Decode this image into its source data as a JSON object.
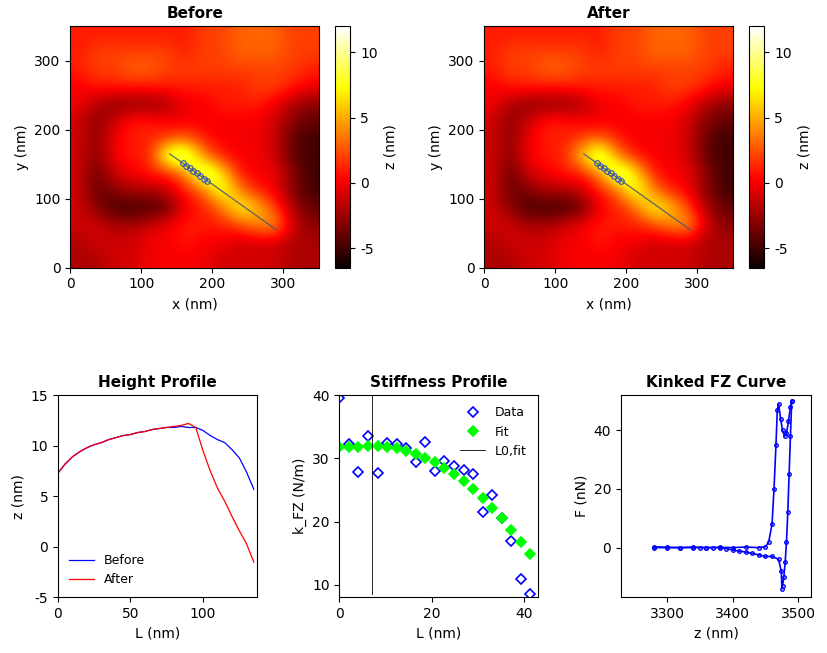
{
  "chart_data": [
    {
      "type": "heatmap",
      "title": "Before",
      "xlabel": "x (nm)",
      "ylabel": "y (nm)",
      "xlim": [
        0,
        350
      ],
      "ylim": [
        0,
        350
      ],
      "xticks": [
        0,
        100,
        200,
        300
      ],
      "yticks": [
        0,
        100,
        200,
        300
      ],
      "colorbar_label": "z (nm)",
      "colorbar_lim": [
        -6.5,
        12
      ],
      "colorbar_ticks": [
        -5,
        0,
        5,
        10
      ],
      "cells": [
        [
          -2,
          -2,
          -1,
          -1,
          0,
          0,
          0,
          0,
          -1,
          -1,
          -1,
          -1,
          -2,
          -2
        ],
        [
          -2,
          -1,
          -1,
          -1,
          0,
          0,
          1,
          0,
          0,
          -1,
          -1,
          -1,
          -2,
          -2
        ],
        [
          -1,
          -1,
          -2,
          -2,
          -1,
          0,
          1,
          1,
          1,
          2,
          4,
          5,
          -1,
          -3
        ],
        [
          -1,
          -3,
          -5,
          -5,
          -5,
          -4,
          0,
          1,
          3,
          8,
          6,
          2,
          -2,
          -4
        ],
        [
          -1,
          -4,
          -3,
          -2,
          -2,
          -1,
          1,
          3,
          9,
          4,
          1,
          0,
          -3,
          -5
        ],
        [
          -1,
          -4,
          -1,
          0,
          1,
          1,
          4,
          11,
          7,
          1,
          0,
          0,
          -3,
          -5
        ],
        [
          -1,
          -3,
          0,
          1,
          1,
          10,
          11,
          4,
          1,
          0,
          0,
          -1,
          -4,
          -5
        ],
        [
          -1,
          -3,
          0,
          1,
          1,
          2,
          3,
          1,
          0,
          0,
          0,
          -1,
          -4,
          -5
        ],
        [
          -1,
          -3,
          -1,
          1,
          1,
          0,
          0,
          0,
          0,
          0,
          0,
          -1,
          -3,
          -4
        ],
        [
          0,
          -2,
          -3,
          -3,
          -3,
          -2,
          0,
          0,
          1,
          1,
          1,
          0,
          -2,
          -3
        ],
        [
          0,
          1,
          1,
          1,
          1,
          1,
          1,
          1,
          1,
          1,
          2,
          2,
          1,
          0
        ],
        [
          1,
          2,
          2,
          3,
          3,
          2,
          2,
          2,
          2,
          2,
          2,
          2,
          2,
          1
        ],
        [
          1,
          2,
          2,
          2,
          2,
          2,
          1,
          2,
          2,
          3,
          3,
          3,
          2,
          2
        ],
        [
          1,
          1,
          1,
          1,
          1,
          1,
          1,
          2,
          2,
          3,
          3,
          3,
          2,
          2
        ]
      ],
      "profile_line": {
        "x": [
          140,
          290
        ],
        "y": [
          165,
          55
        ]
      },
      "points": {
        "x": [
          158,
          163,
          168,
          173,
          178,
          183,
          188,
          193
        ],
        "y": [
          152,
          148,
          144,
          140,
          137,
          133,
          129,
          126
        ]
      }
    },
    {
      "type": "heatmap",
      "title": "After",
      "xlabel": "x (nm)",
      "ylabel": "y (nm)",
      "xlim": [
        0,
        350
      ],
      "ylim": [
        0,
        350
      ],
      "xticks": [
        0,
        100,
        200,
        300
      ],
      "yticks": [
        0,
        100,
        200,
        300
      ],
      "colorbar_label": "z (nm)",
      "colorbar_lim": [
        -6.5,
        12
      ],
      "colorbar_ticks": [
        -5,
        0,
        5,
        10
      ],
      "cells": [
        [
          -2,
          -2,
          -1,
          -1,
          0,
          0,
          0,
          0,
          -1,
          -1,
          -1,
          -1,
          -2,
          -2
        ],
        [
          -2,
          -1,
          -1,
          -1,
          0,
          0,
          1,
          0,
          0,
          -1,
          -1,
          -1,
          -2,
          -2
        ],
        [
          -1,
          -1,
          -2,
          -2,
          -1,
          0,
          1,
          1,
          1,
          2,
          4,
          5,
          -1,
          -3
        ],
        [
          -1,
          -3,
          -5,
          -5,
          -5,
          -4,
          0,
          1,
          3,
          8,
          6,
          2,
          -2,
          -4
        ],
        [
          -1,
          -4,
          -3,
          -2,
          -2,
          -1,
          1,
          3,
          9,
          4,
          1,
          0,
          -3,
          -5
        ],
        [
          -1,
          -4,
          -1,
          0,
          1,
          1,
          4,
          11,
          7,
          1,
          0,
          0,
          -3,
          -5
        ],
        [
          -1,
          -3,
          0,
          1,
          1,
          6,
          11,
          4,
          1,
          0,
          0,
          -1,
          -4,
          -5
        ],
        [
          -1,
          -3,
          0,
          1,
          1,
          2,
          3,
          1,
          0,
          0,
          0,
          -1,
          -4,
          -5
        ],
        [
          -1,
          -3,
          -1,
          1,
          1,
          0,
          0,
          0,
          0,
          0,
          0,
          -1,
          -3,
          -4
        ],
        [
          0,
          -2,
          -3,
          -3,
          -3,
          -2,
          0,
          0,
          1,
          1,
          1,
          0,
          -2,
          -3
        ],
        [
          0,
          1,
          1,
          1,
          1,
          1,
          1,
          1,
          1,
          1,
          2,
          2,
          1,
          0
        ],
        [
          1,
          2,
          2,
          3,
          3,
          2,
          2,
          2,
          2,
          2,
          2,
          2,
          2,
          1
        ],
        [
          1,
          2,
          2,
          2,
          2,
          2,
          1,
          2,
          2,
          3,
          3,
          3,
          2,
          2
        ],
        [
          1,
          1,
          1,
          1,
          1,
          1,
          1,
          2,
          2,
          3,
          3,
          3,
          2,
          2
        ]
      ],
      "profile_line": {
        "x": [
          140,
          290
        ],
        "y": [
          165,
          55
        ]
      },
      "points": {
        "x": [
          158,
          163,
          168,
          173,
          178,
          183,
          188,
          193
        ],
        "y": [
          152,
          148,
          144,
          140,
          137,
          133,
          129,
          126
        ]
      }
    },
    {
      "type": "line",
      "title": "Height Profile",
      "xlabel": "L (nm)",
      "ylabel": "z (nm)",
      "xlim": [
        0,
        137
      ],
      "ylim": [
        -5,
        15
      ],
      "xticks": [
        0,
        50,
        100
      ],
      "yticks": [
        -5,
        0,
        5,
        10,
        15
      ],
      "legend": "lower left",
      "x": [
        0,
        5,
        10,
        15,
        20,
        25,
        30,
        35,
        40,
        45,
        50,
        55,
        60,
        65,
        70,
        75,
        80,
        85,
        90,
        95,
        100,
        105,
        110,
        115,
        120,
        125,
        130,
        135
      ],
      "series": [
        {
          "name": "Before",
          "color": "#0000ff",
          "values": [
            7.3,
            8.2,
            8.9,
            9.4,
            9.8,
            10.1,
            10.3,
            10.6,
            10.8,
            11.0,
            11.1,
            11.3,
            11.4,
            11.6,
            11.7,
            11.8,
            11.8,
            11.9,
            11.8,
            11.8,
            11.5,
            11.0,
            10.6,
            10.3,
            9.6,
            8.8,
            7.4,
            5.7
          ]
        },
        {
          "name": "After",
          "color": "#ff0000",
          "values": [
            7.3,
            8.2,
            8.9,
            9.4,
            9.8,
            10.1,
            10.3,
            10.6,
            10.8,
            11.0,
            11.1,
            11.3,
            11.4,
            11.6,
            11.7,
            11.8,
            11.9,
            12.0,
            12.2,
            11.8,
            9.5,
            7.5,
            5.8,
            4.5,
            3.0,
            1.6,
            0.3,
            -1.5
          ]
        }
      ]
    },
    {
      "type": "scatter",
      "title": "Stiffness Profile",
      "xlabel": "L (nm)",
      "ylabel": "k_FZ (N/m)",
      "xlim": [
        0,
        43
      ],
      "ylim": [
        8,
        40
      ],
      "xticks": [
        0,
        20,
        40
      ],
      "yticks": [
        10,
        20,
        30,
        40
      ],
      "legend": "upper right",
      "x": [
        0,
        2.1,
        4.1,
        6.2,
        8.3,
        10.3,
        12.4,
        14.5,
        16.5,
        18.6,
        20.7,
        22.7,
        24.8,
        26.9,
        28.9,
        31.0,
        33.1,
        35.1,
        37.2,
        39.3,
        41.3
      ],
      "series": [
        {
          "name": "Data",
          "color": "#0000ff",
          "marker": "diamond_open",
          "values": [
            39.5,
            32.3,
            27.8,
            33.6,
            27.7,
            32.5,
            32.2,
            31.6,
            29.4,
            32.6,
            28.0,
            29.5,
            28.8,
            28.2,
            27.5,
            21.5,
            24.2,
            20.5,
            17.0,
            11.0,
            8.5
          ]
        },
        {
          "name": "Fit",
          "color": "#00ff00",
          "marker": "diamond_filled",
          "values": [
            31.8,
            31.8,
            31.8,
            31.9,
            31.9,
            31.8,
            31.6,
            31.2,
            30.7,
            30.1,
            29.4,
            28.5,
            27.5,
            26.4,
            25.1,
            23.7,
            22.2,
            20.5,
            18.7,
            16.8,
            14.8
          ]
        }
      ],
      "vline": {
        "name": "L0,fit",
        "color": "#000000",
        "x": 7,
        "y": [
          8.5,
          40
        ]
      }
    },
    {
      "type": "line",
      "title": "Kinked FZ Curve",
      "xlabel": "z (nm)",
      "ylabel": "F (nN)",
      "xlim": [
        3230,
        3520
      ],
      "ylim": [
        -17,
        52
      ],
      "xticks": [
        3300,
        3400,
        3500
      ],
      "yticks": [
        0,
        20,
        40
      ],
      "series": [
        {
          "color": "#0000ff",
          "marker": "circle",
          "x": [
            3280,
            3300,
            3320,
            3340,
            3360,
            3380,
            3400,
            3420,
            3440,
            3450,
            3455,
            3460,
            3463,
            3466,
            3468,
            3470,
            3473,
            3476,
            3479,
            3482,
            3485,
            3488,
            3490
          ],
          "values": [
            0.3,
            0.1,
            0,
            0.2,
            0,
            0.1,
            0,
            0.2,
            0,
            0.3,
            2,
            8,
            20,
            35,
            47,
            49,
            44,
            40,
            38,
            39,
            43,
            48,
            50
          ]
        },
        {
          "color": "#0000ff",
          "marker": "circle",
          "x": [
            3490,
            3488,
            3486,
            3484,
            3482,
            3480,
            3478,
            3476,
            3475,
            3474,
            3470,
            3460,
            3450,
            3440,
            3430,
            3420,
            3410,
            3400,
            3390,
            3380,
            3370,
            3360,
            3350,
            3340,
            3320,
            3300,
            3280
          ],
          "values": [
            50,
            38,
            25,
            12,
            2,
            -5,
            -10,
            -13,
            -14,
            -8,
            -4,
            -3,
            -3,
            -2.5,
            -2,
            -1.5,
            -1.2,
            -0.8,
            -0.3,
            0,
            0,
            0,
            0,
            0,
            0,
            0,
            0
          ]
        }
      ]
    }
  ]
}
